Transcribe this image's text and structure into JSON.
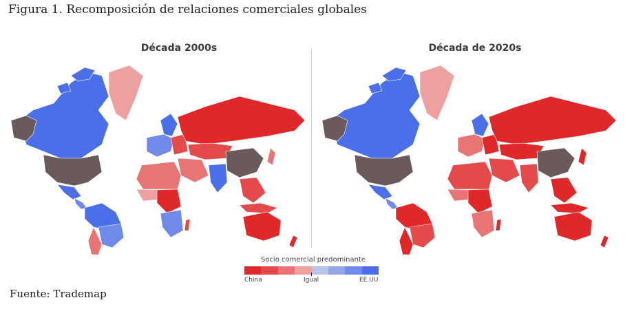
{
  "figure_title": "Figura 1. Recomposición de relaciones comerciales globales",
  "maps": [
    {
      "title": "Década 2000s"
    },
    {
      "title": "Década de 2020s"
    }
  ],
  "legend": {
    "title": "Socio comercial predominante",
    "label_left": "China",
    "label_mid": "Igual",
    "label_right": "EE.UU",
    "colors": [
      "#e0282b",
      "#e54a4a",
      "#e87474",
      "#eea0a0",
      "#b9c2e9",
      "#93a6ea",
      "#6f8ae9",
      "#4b6fe8"
    ]
  },
  "colors": {
    "china_strong": "#e0282b",
    "china_mid": "#e87474",
    "china_light": "#eea0a0",
    "usa_light": "#93a6ea",
    "usa_strong": "#4b6fe8",
    "dominant_self": "#6b5a5c"
  },
  "source": "Fuente: Trademap"
}
